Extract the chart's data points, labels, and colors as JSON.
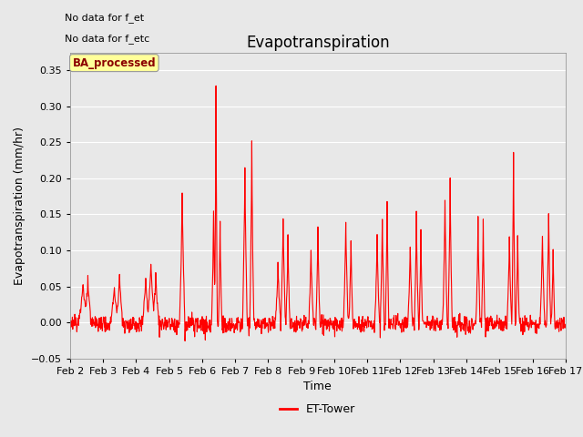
{
  "title": "Evapotranspiration",
  "xlabel": "Time",
  "ylabel": "Evapotranspiration (mm/hr)",
  "ylim": [
    -0.05,
    0.375
  ],
  "yticks": [
    -0.05,
    0.0,
    0.05,
    0.1,
    0.15,
    0.2,
    0.25,
    0.3,
    0.35
  ],
  "xtick_labels": [
    "Feb 2",
    "Feb 3",
    "Feb 4",
    "Feb 5",
    "Feb 6",
    "Feb 7",
    "Feb 8",
    "Feb 9",
    "Feb 10",
    "Feb 11",
    "Feb 12",
    "Feb 13",
    "Feb 14",
    "Feb 15",
    "Feb 16",
    "Feb 17"
  ],
  "line_color": "#ff0000",
  "line_width": 0.8,
  "bg_color": "#e8e8e8",
  "legend_label": "ET-Tower",
  "legend_box_color": "#ffff99",
  "legend_text": "BA_processed",
  "no_data_text1": "No data for f_et",
  "no_data_text2": "No data for f_etc",
  "grid_color": "#ffffff",
  "title_fontsize": 12,
  "axis_fontsize": 9,
  "tick_fontsize": 8,
  "fig_facecolor": "#e8e8e8"
}
